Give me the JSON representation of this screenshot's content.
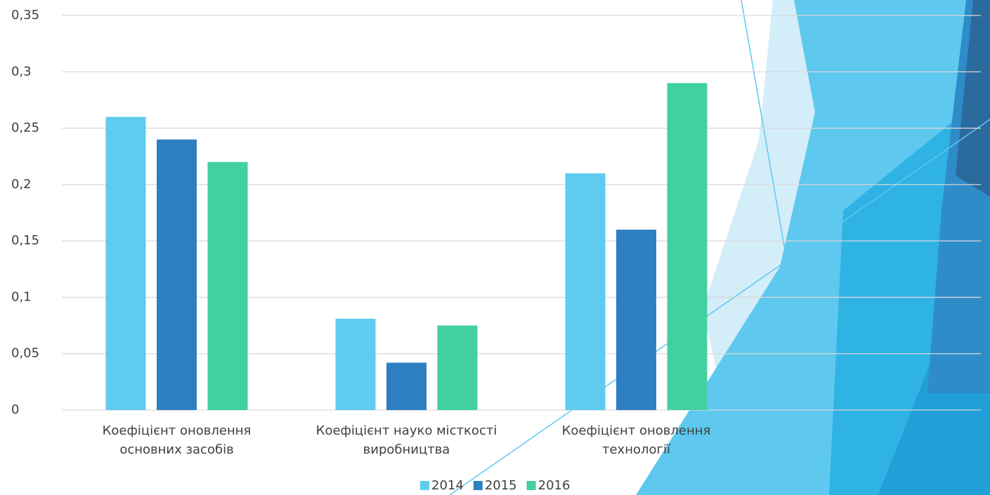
{
  "chart_data": {
    "type": "bar",
    "categories": [
      "Коефіцієнт оновлення основних засобів",
      "Коефіцієнт науко місткості виробництва",
      "Коефіцієнт оновлення технології",
      null
    ],
    "series": [
      {
        "name": "2014",
        "color": "#5ecbef",
        "values": [
          0.26,
          0.081,
          0.21,
          null
        ]
      },
      {
        "name": "2015",
        "color": "#2e7fc2",
        "values": [
          0.24,
          0.042,
          0.16,
          null
        ]
      },
      {
        "name": "2016",
        "color": "#43d0a0",
        "values": [
          0.22,
          0.075,
          0.29,
          null
        ]
      }
    ],
    "ylim": [
      0,
      0.35
    ],
    "yticks": [
      0,
      {
        "value": 0.05,
        "label": "0,05"
      },
      {
        "value": 0.1,
        "label": "0,1"
      },
      {
        "value": 0.15,
        "label": "0,15"
      },
      {
        "value": 0.2,
        "label": "0,2"
      },
      {
        "value": 0.25,
        "label": "0,25"
      },
      {
        "value": 0.3,
        "label": "0,3"
      },
      {
        "value": 0.35,
        "label": "0,35"
      }
    ],
    "grid": true,
    "legend": "bottom"
  }
}
